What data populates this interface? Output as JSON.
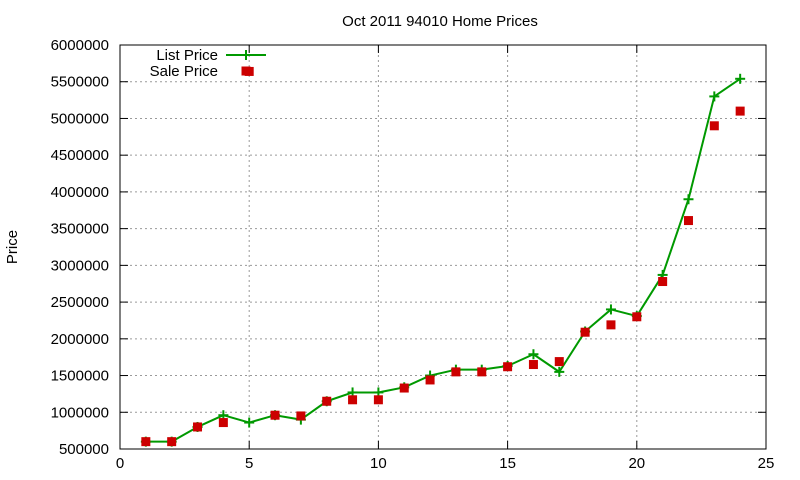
{
  "chart_data": {
    "type": "line",
    "title": "Oct 2011 94010 Home Prices",
    "xlabel": "",
    "ylabel": "Price",
    "xlim": [
      0,
      25
    ],
    "ylim": [
      500000,
      6000000
    ],
    "xticks": [
      "0",
      "5",
      "10",
      "15",
      "20",
      "25"
    ],
    "yticks": [
      "500000",
      "1000000",
      "1500000",
      "2000000",
      "2500000",
      "3000000",
      "3500000",
      "4000000",
      "4500000",
      "5000000",
      "5500000",
      "6000000"
    ],
    "grid": true,
    "legend_position": "top-left",
    "series": [
      {
        "name": "List Price",
        "color": "#009900",
        "style": "line-with-cross-points",
        "x": [
          1,
          2,
          3,
          4,
          5,
          6,
          7,
          8,
          9,
          10,
          11,
          12,
          13,
          14,
          15,
          16,
          17,
          18,
          19,
          20,
          21,
          22,
          23,
          24
        ],
        "y": [
          600000,
          600000,
          800000,
          960000,
          860000,
          960000,
          900000,
          1150000,
          1270000,
          1270000,
          1340000,
          1500000,
          1580000,
          1580000,
          1630000,
          1790000,
          1550000,
          2100000,
          2400000,
          2310000,
          2870000,
          3900000,
          5300000,
          5540000
        ]
      },
      {
        "name": "Sale Price",
        "color": "#cc0000",
        "style": "square-points",
        "x": [
          1,
          2,
          3,
          4,
          5,
          6,
          7,
          8,
          9,
          10,
          11,
          12,
          13,
          14,
          15,
          16,
          17,
          18,
          19,
          20,
          21,
          22,
          23,
          24
        ],
        "y": [
          600000,
          600000,
          800000,
          860000,
          5640000,
          960000,
          950000,
          1150000,
          1170000,
          1170000,
          1330000,
          1440000,
          1550000,
          1550000,
          1620000,
          1650000,
          1690000,
          2090000,
          2190000,
          2300000,
          2780000,
          3610000,
          4900000,
          5100000
        ]
      }
    ]
  }
}
